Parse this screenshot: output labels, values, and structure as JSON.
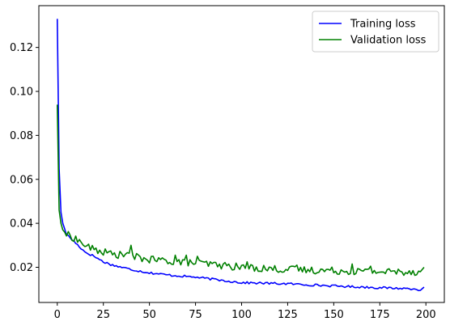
{
  "chart_data": {
    "type": "line",
    "xlim": [
      -10,
      210
    ],
    "ylim": [
      0.004,
      0.139
    ],
    "xticks": [
      0,
      25,
      50,
      75,
      100,
      125,
      150,
      175,
      200
    ],
    "yticks": [
      0.02,
      0.04,
      0.06,
      0.08,
      0.1,
      0.12
    ],
    "xtick_labels": [
      "0",
      "25",
      "50",
      "75",
      "100",
      "125",
      "150",
      "175",
      "200"
    ],
    "ytick_labels": [
      "0.02",
      "0.04",
      "0.06",
      "0.08",
      "0.10",
      "0.12"
    ],
    "grid": false,
    "legend_position": "top-right",
    "series": [
      {
        "name": "Training loss",
        "color": "#0000ff",
        "keypoints": [
          [
            0,
            0.133
          ],
          [
            1,
            0.065
          ],
          [
            2,
            0.045
          ],
          [
            3,
            0.04
          ],
          [
            5,
            0.035
          ],
          [
            10,
            0.031
          ],
          [
            15,
            0.027
          ],
          [
            20,
            0.025
          ],
          [
            25,
            0.0225
          ],
          [
            30,
            0.021
          ],
          [
            40,
            0.019
          ],
          [
            50,
            0.0175
          ],
          [
            60,
            0.0165
          ],
          [
            75,
            0.0155
          ],
          [
            100,
            0.013
          ],
          [
            125,
            0.0125
          ],
          [
            150,
            0.0115
          ],
          [
            175,
            0.0107
          ],
          [
            195,
            0.0102
          ],
          [
            197,
            0.0095
          ],
          [
            199,
            0.011
          ]
        ],
        "noise": 0.0005
      },
      {
        "name": "Validation loss",
        "color": "#008000",
        "keypoints": [
          [
            0,
            0.094
          ],
          [
            1,
            0.046
          ],
          [
            2,
            0.04
          ],
          [
            3,
            0.037
          ],
          [
            5,
            0.035
          ],
          [
            10,
            0.033
          ],
          [
            15,
            0.03
          ],
          [
            20,
            0.028
          ],
          [
            25,
            0.027
          ],
          [
            30,
            0.026
          ],
          [
            40,
            0.025
          ],
          [
            50,
            0.0235
          ],
          [
            75,
            0.022
          ],
          [
            100,
            0.02
          ],
          [
            125,
            0.019
          ],
          [
            150,
            0.0185
          ],
          [
            175,
            0.018
          ],
          [
            197,
            0.018
          ],
          [
            199,
            0.02
          ]
        ],
        "noise": 0.0017,
        "spikes": [
          [
            40,
            0.03
          ],
          [
            37,
            0.026
          ],
          [
            64,
            0.0255
          ],
          [
            70,
            0.0255
          ],
          [
            76,
            0.025
          ],
          [
            103,
            0.0225
          ],
          [
            130,
            0.021
          ],
          [
            160,
            0.0215
          ],
          [
            170,
            0.0205
          ]
        ]
      }
    ]
  }
}
